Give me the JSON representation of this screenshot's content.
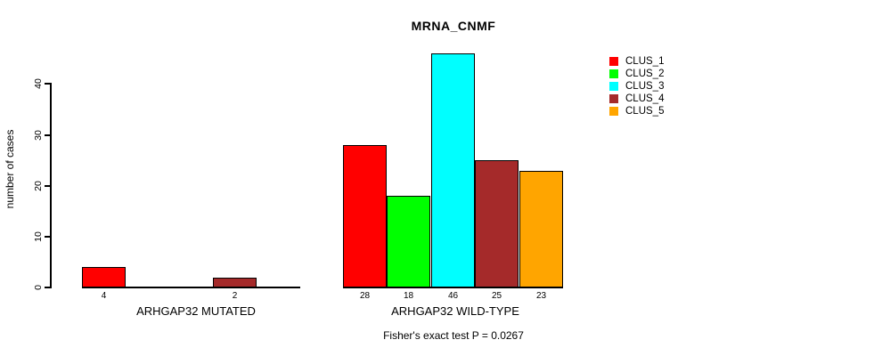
{
  "chart_data": {
    "type": "bar",
    "title": "MRNA_CNMF",
    "subtitle": "Fisher's exact test P = 0.0267",
    "ylabel": "number of cases",
    "xlabel": "",
    "yticks": [
      0,
      10,
      20,
      30,
      40
    ],
    "ylim": [
      0,
      46
    ],
    "grid": false,
    "legend_position": "top-right",
    "categories": [
      "ARHGAP32 MUTATED",
      "ARHGAP32 WILD-TYPE"
    ],
    "series": [
      {
        "name": "CLUS_1",
        "color": "#ff0000",
        "values": [
          4,
          28
        ]
      },
      {
        "name": "CLUS_2",
        "color": "#00ff00",
        "values": [
          0,
          18
        ]
      },
      {
        "name": "CLUS_3",
        "color": "#00ffff",
        "values": [
          0,
          46
        ]
      },
      {
        "name": "CLUS_4",
        "color": "#a52a2a",
        "values": [
          2,
          25
        ]
      },
      {
        "name": "CLUS_5",
        "color": "#ffa500",
        "values": [
          0,
          23
        ]
      }
    ],
    "bar_value_labels": [
      [
        "4",
        "",
        "",
        "2",
        ""
      ],
      [
        "28",
        "18",
        "46",
        "25",
        "23"
      ]
    ],
    "bar_border_color": "#000000"
  }
}
